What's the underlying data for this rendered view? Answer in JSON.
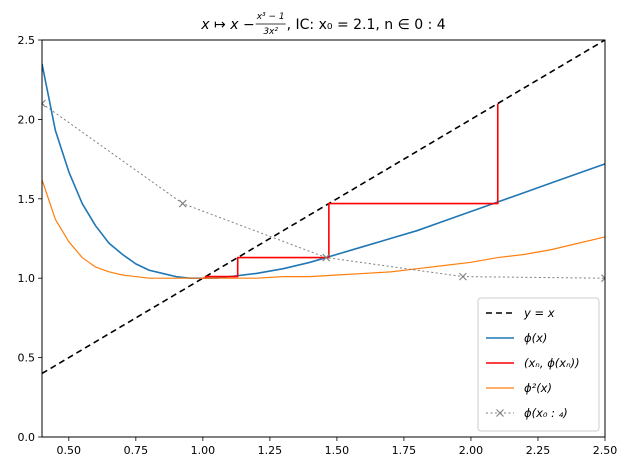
{
  "chart_data": {
    "type": "line",
    "title_parts": {
      "map": "x ↦ x − ",
      "num": "x³ − 1",
      "den": "3x²",
      "ic": ", IC: x₀ = 2.1, n ∈ 0 : 4"
    },
    "xlabel": "",
    "ylabel": "",
    "xlim": [
      0.4,
      2.5
    ],
    "ylim": [
      0.0,
      2.5
    ],
    "xticks": [
      "0.50",
      "0.75",
      "1.00",
      "1.25",
      "1.50",
      "1.75",
      "2.00",
      "2.25",
      "2.50"
    ],
    "yticks": [
      "0.0",
      "0.5",
      "1.0",
      "1.5",
      "2.0",
      "2.5"
    ],
    "grid": false,
    "legend_position": "bottom-right",
    "series": [
      {
        "name": "y = x",
        "color": "#000000",
        "style": "dashed",
        "x": [
          0.4,
          2.5
        ],
        "y": [
          0.4,
          2.5
        ]
      },
      {
        "name": "ϕ(x)",
        "color": "#1f77b4",
        "style": "solid",
        "x": [
          0.4,
          0.45,
          0.5,
          0.55,
          0.6,
          0.65,
          0.7,
          0.75,
          0.8,
          0.85,
          0.9,
          0.95,
          1.0,
          1.05,
          1.1,
          1.2,
          1.3,
          1.4,
          1.5,
          1.6,
          1.7,
          1.8,
          1.9,
          2.0,
          2.1,
          2.2,
          2.3,
          2.4,
          2.5
        ],
        "y": [
          2.35,
          1.93,
          1.67,
          1.47,
          1.33,
          1.22,
          1.15,
          1.09,
          1.05,
          1.03,
          1.01,
          1.0,
          1.0,
          1.0,
          1.01,
          1.03,
          1.06,
          1.1,
          1.15,
          1.2,
          1.25,
          1.3,
          1.36,
          1.42,
          1.48,
          1.54,
          1.6,
          1.66,
          1.72
        ]
      },
      {
        "name": "(xₙ, ϕ(xₙ))",
        "color": "#ff0000",
        "style": "solid",
        "x": [
          2.1,
          2.1,
          1.47,
          1.47,
          1.13,
          1.13,
          1.01,
          1.01,
          1.0
        ],
        "y": [
          2.1,
          1.47,
          1.47,
          1.13,
          1.13,
          1.01,
          1.01,
          1.0,
          1.0
        ]
      },
      {
        "name": "ϕ²(x)",
        "color": "#ff7f0e",
        "style": "solid",
        "x": [
          0.4,
          0.45,
          0.5,
          0.55,
          0.6,
          0.65,
          0.7,
          0.8,
          0.9,
          1.0,
          1.1,
          1.2,
          1.3,
          1.4,
          1.5,
          1.6,
          1.7,
          1.8,
          1.9,
          2.0,
          2.1,
          2.2,
          2.3,
          2.4,
          2.5
        ],
        "y": [
          1.62,
          1.37,
          1.23,
          1.13,
          1.07,
          1.04,
          1.02,
          1.0,
          1.0,
          1.0,
          1.0,
          1.0,
          1.01,
          1.01,
          1.02,
          1.03,
          1.04,
          1.06,
          1.08,
          1.1,
          1.13,
          1.15,
          1.18,
          1.22,
          1.26
        ]
      },
      {
        "name": "ϕ(x₀ : ₄)",
        "color": "#7f7f7f",
        "style": "dotted",
        "marker": "x",
        "x": [
          0.4,
          0.925,
          1.46,
          1.97,
          2.5
        ],
        "y": [
          2.1,
          1.47,
          1.13,
          1.01,
          1.0
        ]
      }
    ]
  }
}
